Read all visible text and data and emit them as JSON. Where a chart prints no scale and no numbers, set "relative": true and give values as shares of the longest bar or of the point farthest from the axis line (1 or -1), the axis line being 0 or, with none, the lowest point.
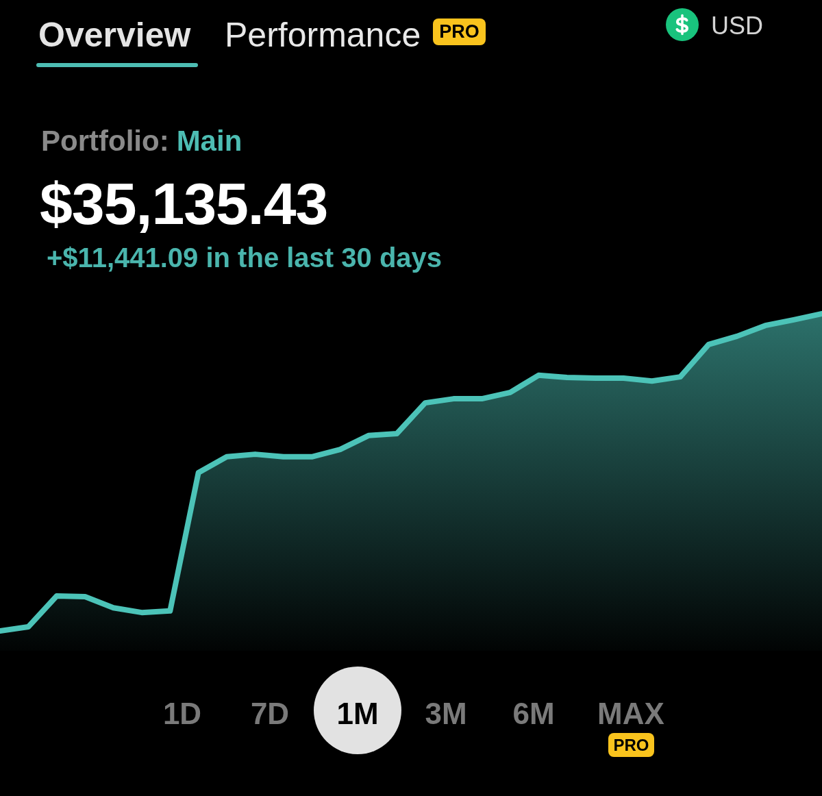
{
  "chart_data": {
    "type": "area",
    "title": "$35,135.43",
    "subtitle": "+$11,441.09 in the last 30 days",
    "annotations": [
      "Overview",
      "Performance",
      "PRO",
      "USD",
      "Portfolio:",
      "Main",
      "1D",
      "7D",
      "1M",
      "3M",
      "6M",
      "MAX",
      "PRO"
    ],
    "categories": [
      null,
      null,
      null,
      null,
      null,
      null,
      null,
      null,
      null,
      null,
      null,
      null,
      null,
      null,
      null,
      null,
      null,
      null,
      null,
      null,
      null,
      null,
      null,
      null,
      null,
      null,
      null,
      null,
      null,
      null
    ],
    "values": [
      0,
      0.013,
      0.11,
      0.108,
      0.073,
      0.058,
      0.063,
      0.499,
      0.549,
      0.557,
      0.549,
      0.549,
      0.572,
      0.616,
      0.622,
      0.719,
      0.732,
      0.732,
      0.752,
      0.806,
      0.799,
      0.797,
      0.797,
      0.788,
      0.801,
      0.903,
      0.929,
      0.963,
      0.981,
      1
    ],
    "color": "#4cc3b8",
    "relative": true,
    "marker": "none"
  }
}
